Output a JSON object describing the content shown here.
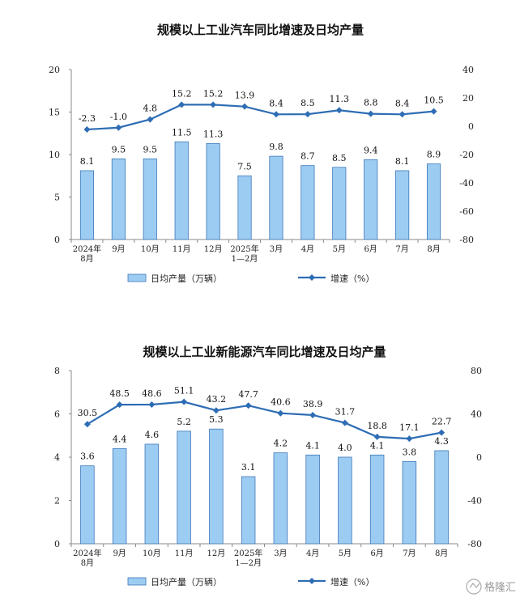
{
  "chart_data": [
    {
      "type": "bar+line",
      "title": "规模以上工业汽车同比增速及日均产量",
      "categories": [
        [
          "2024年",
          "8月"
        ],
        [
          "9月"
        ],
        [
          "10月"
        ],
        [
          "11月"
        ],
        [
          "12月"
        ],
        [
          "2025年",
          "1—2月"
        ],
        [
          "3月"
        ],
        [
          "4月"
        ],
        [
          "5月"
        ],
        [
          "6月"
        ],
        [
          "7月"
        ],
        [
          "8月"
        ]
      ],
      "series": [
        {
          "name": "日均产量（万辆）",
          "type": "bar",
          "axis": "left",
          "color": "#9DCCF2",
          "values": [
            8.1,
            9.5,
            9.5,
            11.5,
            11.3,
            7.5,
            9.8,
            8.7,
            8.5,
            9.4,
            8.1,
            8.9
          ]
        },
        {
          "name": "增速（%）",
          "type": "line",
          "axis": "right",
          "color": "#2E6DB4",
          "values": [
            -2.3,
            -1.0,
            4.8,
            15.2,
            15.2,
            13.9,
            8.4,
            8.5,
            11.3,
            8.8,
            8.4,
            10.5
          ]
        }
      ],
      "y_left": {
        "min": 0,
        "max": 20,
        "ticks": [
          0,
          5,
          10,
          15,
          20
        ]
      },
      "y_right": {
        "min": -80,
        "max": 40,
        "ticks": [
          40,
          20,
          0,
          -20,
          -40,
          -60,
          -80
        ]
      },
      "grid": false,
      "legend": "bottom"
    },
    {
      "type": "bar+line",
      "title": "规模以上工业新能源汽车同比增速及日均产量",
      "categories": [
        [
          "2024年",
          "8月"
        ],
        [
          "9月"
        ],
        [
          "10月"
        ],
        [
          "11月"
        ],
        [
          "12月"
        ],
        [
          "2025年",
          "1—2月"
        ],
        [
          "3月"
        ],
        [
          "4月"
        ],
        [
          "5月"
        ],
        [
          "6月"
        ],
        [
          "7月"
        ],
        [
          "8月"
        ]
      ],
      "series": [
        {
          "name": "日均产量（万辆）",
          "type": "bar",
          "axis": "left",
          "color": "#9DCCF2",
          "values": [
            3.6,
            4.4,
            4.6,
            5.2,
            5.3,
            3.1,
            4.2,
            4.1,
            4.0,
            4.1,
            3.8,
            4.3
          ]
        },
        {
          "name": "增速（%）",
          "type": "line",
          "axis": "right",
          "color": "#2E6DB4",
          "values": [
            30.5,
            48.5,
            48.6,
            51.1,
            43.2,
            47.7,
            40.6,
            38.9,
            31.7,
            18.8,
            17.1,
            22.7
          ]
        }
      ],
      "y_left": {
        "min": 0,
        "max": 8,
        "ticks": [
          0,
          2,
          4,
          6,
          8
        ]
      },
      "y_right": {
        "min": -80,
        "max": 80,
        "ticks": [
          80,
          40,
          0,
          -40,
          -80
        ]
      },
      "grid": false,
      "legend": "bottom"
    }
  ],
  "watermark": {
    "text": "格隆汇"
  }
}
